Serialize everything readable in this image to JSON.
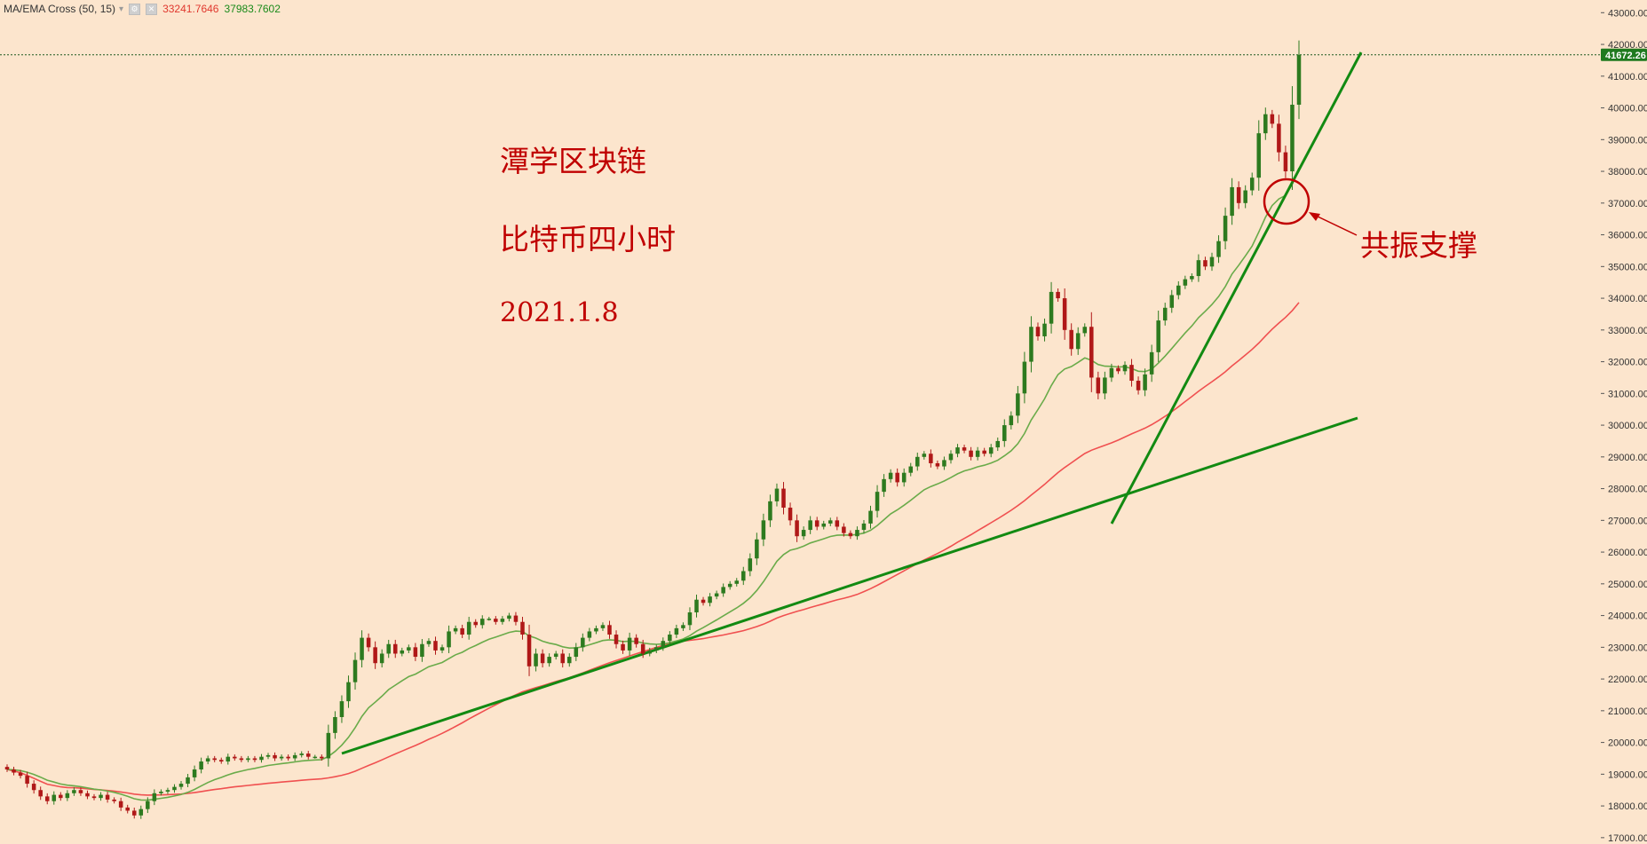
{
  "legend": {
    "name": "MA/EMA Cross (50, 15)",
    "chevron_icon": "chevron-down-icon",
    "settings_icon": "gear-icon",
    "close_icon": "close-icon",
    "value_ma50": "33241.7646",
    "value_ema15": "37983.7602"
  },
  "annotations": {
    "title": "潭学区块链",
    "subtitle": "比特币四小时",
    "date": "2021.1.8",
    "callout": "共振支撑"
  },
  "colors": {
    "background": "#fce5cd",
    "up": "#2d7a1f",
    "down": "#b01818",
    "ma50": "#f05050",
    "ema15": "#6aab4a",
    "trendline": "#128a12",
    "annotation": "#c00000",
    "price_tag": "#1f7a1f"
  },
  "chart_data": {
    "type": "candlestick",
    "title": "",
    "last_price": "41672.26",
    "ylim": [
      16800,
      43400
    ],
    "y_ticks": [
      "43000.00",
      "42000.00",
      "41000.00",
      "40000.00",
      "39000.00",
      "38000.00",
      "37000.00",
      "36000.00",
      "35000.00",
      "34000.00",
      "33000.00",
      "32000.00",
      "31000.00",
      "30000.00",
      "29000.00",
      "28000.00",
      "27000.00",
      "26000.00",
      "25000.00",
      "24000.00",
      "23000.00",
      "22000.00",
      "21000.00",
      "20000.00",
      "19000.00",
      "18000.00",
      "17000.00"
    ],
    "closes": [
      19150,
      19050,
      18950,
      18700,
      18500,
      18300,
      18150,
      18350,
      18250,
      18400,
      18500,
      18400,
      18300,
      18250,
      18350,
      18200,
      18150,
      17950,
      17850,
      17700,
      17900,
      18150,
      18400,
      18450,
      18500,
      18600,
      18700,
      18900,
      19150,
      19400,
      19500,
      19450,
      19400,
      19550,
      19500,
      19450,
      19500,
      19450,
      19550,
      19600,
      19500,
      19550,
      19500,
      19600,
      19650,
      19550,
      19550,
      19500,
      20300,
      20800,
      21300,
      21900,
      22600,
      23300,
      23000,
      22500,
      22800,
      23100,
      22800,
      22900,
      23000,
      22700,
      23100,
      23200,
      22900,
      23000,
      23500,
      23600,
      23400,
      23800,
      23700,
      23900,
      23900,
      23800,
      23900,
      24000,
      23800,
      23400,
      22400,
      22800,
      22500,
      22700,
      22800,
      22500,
      22700,
      23000,
      23300,
      23500,
      23600,
      23700,
      23400,
      23100,
      22900,
      23300,
      23100,
      22800,
      22900,
      23000,
      23200,
      23400,
      23600,
      23700,
      24100,
      24500,
      24400,
      24600,
      24700,
      24900,
      25000,
      25100,
      25400,
      25800,
      26400,
      27000,
      27600,
      28000,
      27400,
      27000,
      26500,
      26700,
      27000,
      26800,
      26900,
      27000,
      26800,
      26600,
      26500,
      26700,
      26900,
      27300,
      27900,
      28300,
      28500,
      28200,
      28500,
      28700,
      29000,
      29100,
      28800,
      28700,
      28900,
      29100,
      29300,
      29200,
      29000,
      29200,
      29100,
      29300,
      29500,
      30000,
      30300,
      31000,
      32000,
      33100,
      32800,
      33200,
      34200,
      34000,
      33000,
      32400,
      32900,
      33100,
      31500,
      31000,
      31500,
      31800,
      31700,
      31900,
      31400,
      31100,
      31600,
      32300,
      33300,
      33700,
      34100,
      34400,
      34600,
      34700,
      35200,
      35000,
      35300,
      35800,
      36600,
      37500,
      37000,
      37400,
      37800,
      39200,
      39800,
      39500,
      38600,
      38000,
      40100,
      41672
    ]
  }
}
